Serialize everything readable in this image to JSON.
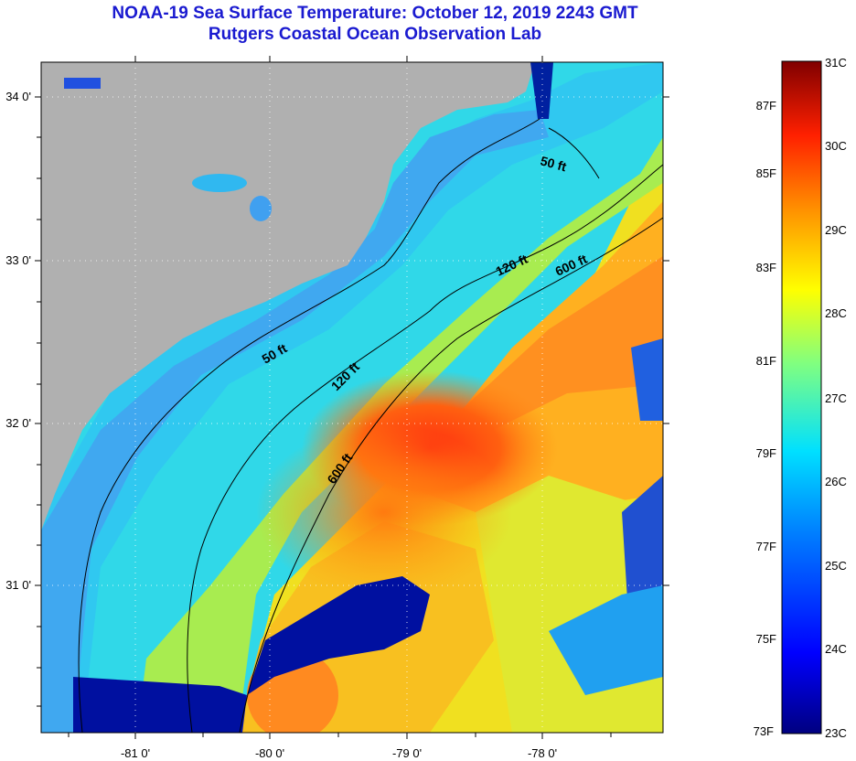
{
  "header": {
    "title": "NOAA-19 Sea Surface Temperature:  October 12, 2019 2243 GMT",
    "subtitle": "Rutgers Coastal Ocean Observation Lab"
  },
  "map": {
    "lon_labels": [
      "-81 0'",
      "-80 0'",
      "-79 0'",
      "-78 0'"
    ],
    "lat_labels": [
      "34 0'",
      "33 0'",
      "32 0'",
      "31 0'"
    ],
    "contour_labels": [
      "50 ft",
      "120 ft",
      "600 ft",
      "50 ft",
      "120 ft",
      "600 ft"
    ],
    "colors": {
      "land": "#b0b0b0",
      "grid": "#ffffff"
    }
  },
  "colorbar": {
    "fahrenheit_labels": [
      "87F",
      "85F",
      "83F",
      "81F",
      "79F",
      "77F",
      "75F",
      "73F"
    ],
    "celsius_labels": [
      "31C",
      "30C",
      "29C",
      "28C",
      "27C",
      "26C",
      "25C",
      "24C",
      "23C"
    ]
  }
}
